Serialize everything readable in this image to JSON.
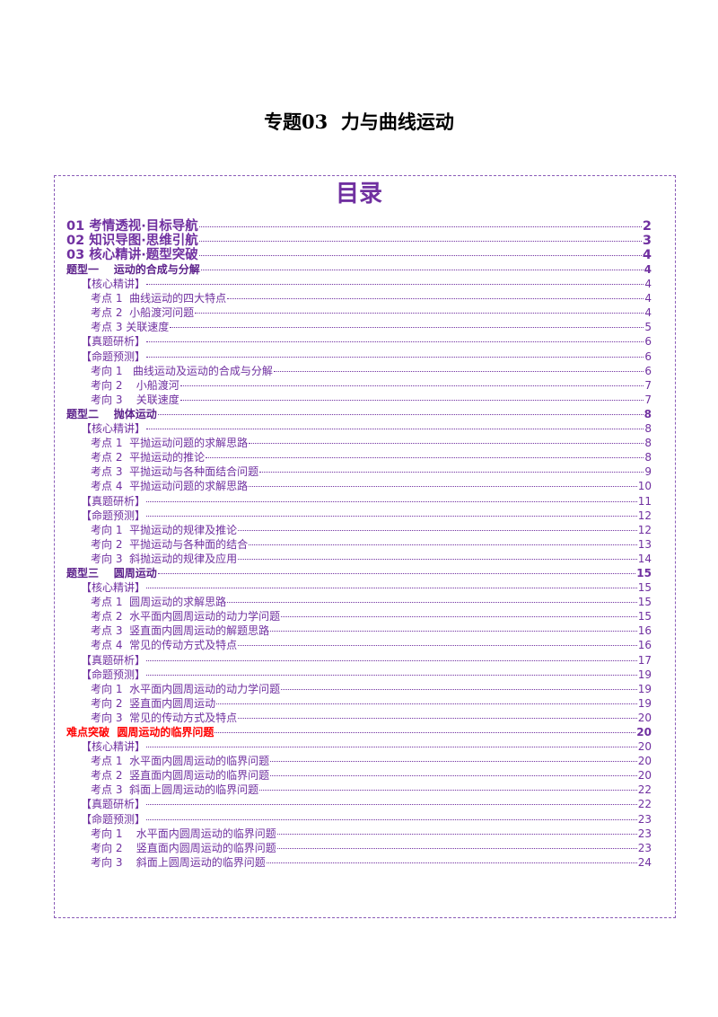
{
  "header": {
    "title": "专题03  力与曲线运动"
  },
  "toc": {
    "heading": "目录",
    "parts": [
      {
        "text": "01 考情透视·目标导航",
        "page": 2
      },
      {
        "text": "02 知识导图·思维引航",
        "page": 3
      },
      {
        "text": "03 核心精讲·题型突破",
        "page": 4
      }
    ],
    "sections": [
      {
        "text": "题型一    运动的合成与分解",
        "page": 4,
        "color": "#5b1f8a",
        "groups": [
          {
            "text": "【核心精讲】",
            "page": 4,
            "items": [
              {
                "text": "考点 1  曲线运动的四大特点",
                "page": 4
              },
              {
                "text": "考点 2  小船渡河问题",
                "page": 4
              },
              {
                "text": "考点 3 关联速度",
                "page": 5
              }
            ]
          },
          {
            "text": "【真题研析】",
            "page": 6,
            "items": []
          },
          {
            "text": "【命题预测】",
            "page": 6,
            "items": [
              {
                "text": "考向 1   曲线运动及运动的合成与分解",
                "page": 6
              },
              {
                "text": "考向 2    小船渡河",
                "page": 7
              },
              {
                "text": "考向 3    关联速度",
                "page": 7
              }
            ]
          }
        ]
      },
      {
        "text": "题型二    抛体运动",
        "page": 8,
        "color": "#5b1f8a",
        "groups": [
          {
            "text": "【核心精讲】",
            "page": 8,
            "items": [
              {
                "text": "考点 1  平抛运动问题的求解思路",
                "page": 8
              },
              {
                "text": "考点 2  平抛运动的推论",
                "page": 8
              },
              {
                "text": "考点 3  平抛运动与各种面结合问题",
                "page": 9
              },
              {
                "text": "考点 4  平抛运动问题的求解思路",
                "page": 10
              }
            ]
          },
          {
            "text": "【真题研析】",
            "page": 11,
            "items": []
          },
          {
            "text": "【命题预测】",
            "page": 12,
            "items": [
              {
                "text": "考向 1  平抛运动的规律及推论",
                "page": 12
              },
              {
                "text": "考向 2  平抛运动与各种面的结合",
                "page": 13
              },
              {
                "text": "考向 3  斜抛运动的规律及应用",
                "page": 14
              }
            ]
          }
        ]
      },
      {
        "text": "题型三    圆周运动",
        "page": 15,
        "color": "#5b1f8a",
        "groups": [
          {
            "text": "【核心精讲】",
            "page": 15,
            "items": [
              {
                "text": "考点 1  圆周运动的求解思路",
                "page": 15
              },
              {
                "text": "考点 2  水平面内圆周运动的动力学问题",
                "page": 15
              },
              {
                "text": "考点 3  竖直面内圆周运动的解题思路",
                "page": 16
              },
              {
                "text": "考点 4  常见的传动方式及特点",
                "page": 16
              }
            ]
          },
          {
            "text": "【真题研析】",
            "page": 17,
            "items": []
          },
          {
            "text": "【命题预测】",
            "page": 19,
            "items": [
              {
                "text": "考向 1  水平面内圆周运动的动力学问题",
                "page": 19
              },
              {
                "text": "考向 2  竖直面内圆周运动",
                "page": 19
              },
              {
                "text": "考向 3  常见的传动方式及特点",
                "page": 20
              }
            ]
          }
        ]
      },
      {
        "text": "难点突破  圆周运动的临界问题",
        "page": 20,
        "color": "#ff0000",
        "groups": [
          {
            "text": "【核心精讲】",
            "page": 20,
            "items": [
              {
                "text": "考点 1  水平面内圆周运动的临界问题",
                "page": 20
              },
              {
                "text": "考点 2  竖直面内圆周运动的临界问题",
                "page": 20
              },
              {
                "text": "考点 3  斜面上圆周运动的临界问题",
                "page": 22
              }
            ]
          },
          {
            "text": "【真题研析】",
            "page": 22,
            "items": []
          },
          {
            "text": "【命题预测】",
            "page": 23,
            "items": [
              {
                "text": "考向 1    水平面内圆周运动的临界问题",
                "page": 23
              },
              {
                "text": "考向 2    竖直面内圆周运动的临界问题",
                "page": 23
              },
              {
                "text": "考向 3    斜面上圆周运动的临界问题",
                "page": 24
              }
            ]
          }
        ]
      }
    ]
  }
}
